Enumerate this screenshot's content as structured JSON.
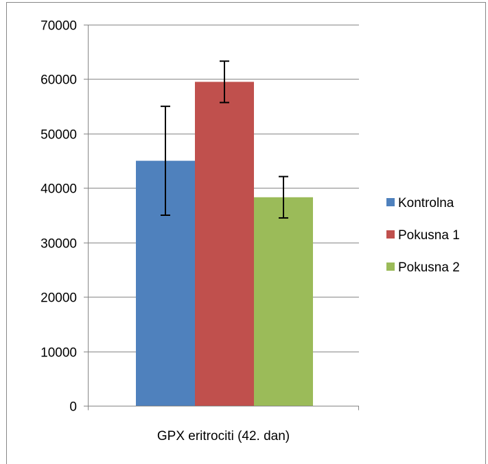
{
  "chart_data": {
    "type": "bar",
    "categories": [
      "GPX eritrociti (42. dan)"
    ],
    "series": [
      {
        "name": "Kontrolna",
        "values": [
          45000
        ],
        "error": [
          10000
        ],
        "color": "#4F81BD"
      },
      {
        "name": "Pokusna 1",
        "values": [
          59500
        ],
        "error": [
          3800
        ],
        "color": "#C0504D"
      },
      {
        "name": "Pokusna 2",
        "values": [
          38300
        ],
        "error": [
          3800
        ],
        "color": "#9BBB59"
      }
    ],
    "title": "",
    "xlabel": "",
    "ylabel": "",
    "ylim": [
      0,
      70000
    ],
    "yticks": [
      0,
      10000,
      20000,
      30000,
      40000,
      50000,
      60000,
      70000
    ],
    "ytick_labels": [
      "0",
      "10000",
      "20000",
      "30000",
      "40000",
      "50000",
      "60000",
      "70000"
    ],
    "grid": true,
    "legend": "right",
    "error_bars": true
  }
}
